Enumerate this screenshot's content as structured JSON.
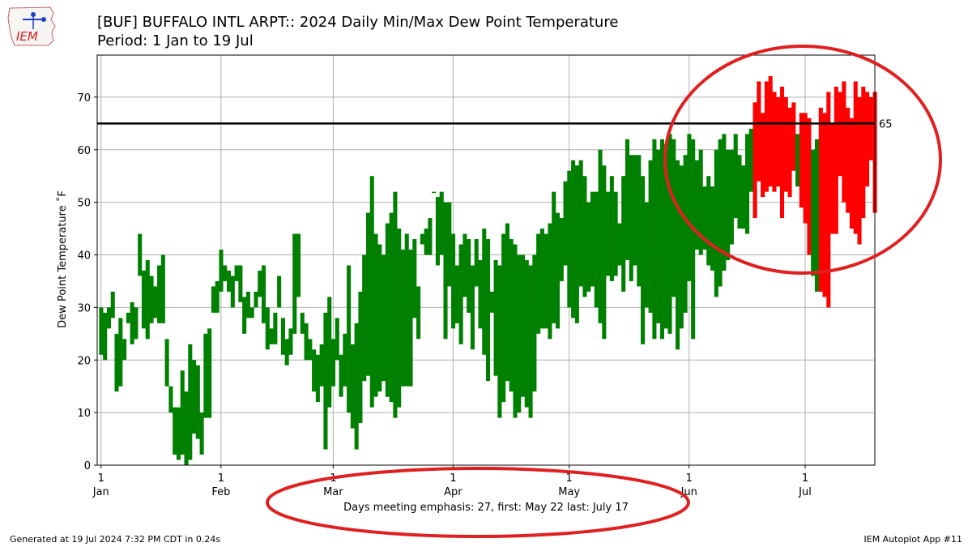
{
  "title_line1": "[BUF] BUFFALO INTL ARPT:: 2024 Daily Min/Max Dew Point Temperature",
  "title_line2": "Period: 1 Jan to 19 Jul",
  "logo_text": "IEM",
  "footer_left": "Generated at 19 Jul 2024 7:32 PM CDT in 0.24s",
  "footer_right": "IEM Autoplot App #11",
  "colors": {
    "normal": "#008000",
    "emphasis": "#ff0000",
    "threshold": "#000000",
    "annotation_ellipse": "#e02020",
    "grid": "#b0b0b0"
  },
  "chart_data": {
    "type": "bar",
    "title": "[BUF] BUFFALO INTL ARPT:: 2024 Daily Min/Max Dew Point Temperature",
    "subtitle": "Period: 1 Jan to 19 Jul",
    "xlabel": "",
    "ylabel": "Dew Point Temperature ˚F",
    "ylim": [
      0,
      78
    ],
    "yticks": [
      0,
      10,
      20,
      30,
      40,
      50,
      60,
      70
    ],
    "xlim_day": [
      0,
      201
    ],
    "month_ticks": [
      {
        "day": 1,
        "top": "1",
        "bottom": "Jan"
      },
      {
        "day": 32,
        "top": "1",
        "bottom": "Feb"
      },
      {
        "day": 61,
        "top": "1",
        "bottom": "Mar"
      },
      {
        "day": 92,
        "top": "1",
        "bottom": "Apr"
      },
      {
        "day": 122,
        "top": "1",
        "bottom": "May"
      },
      {
        "day": 153,
        "top": "1",
        "bottom": "Jun"
      },
      {
        "day": 183,
        "top": "1",
        "bottom": "Jul"
      }
    ],
    "threshold": 65,
    "threshold_label": "65",
    "emphasis_summary": "Days meeting emphasis: 27, first: May 22 last: July 17",
    "start_date": "2024-01-01",
    "daily_min": [
      21,
      20,
      26,
      28,
      14,
      15,
      20,
      27,
      23,
      24,
      36,
      26,
      24,
      27,
      28,
      27,
      27,
      15,
      10,
      2,
      1,
      2,
      0,
      1,
      6,
      5,
      2,
      9,
      9,
      29,
      29,
      33,
      35,
      33,
      30,
      35,
      31,
      25,
      28,
      28,
      30,
      32,
      27,
      22,
      23,
      23,
      30,
      21,
      19,
      21,
      25,
      32,
      25,
      20,
      20,
      14,
      12,
      15,
      3,
      11,
      15,
      20,
      13,
      15,
      10,
      7,
      3,
      8,
      16,
      17,
      11,
      13,
      14,
      16,
      13,
      12,
      9,
      11,
      15,
      15,
      15,
      28,
      24,
      42,
      40,
      40,
      52,
      38,
      40,
      24,
      34,
      26,
      27,
      23,
      32,
      29,
      22,
      34,
      26,
      21,
      16,
      29,
      17,
      9,
      12,
      16,
      14,
      9,
      10,
      13,
      11,
      9,
      14,
      25,
      26,
      26,
      24,
      27,
      26,
      35,
      38,
      30,
      28,
      27,
      34,
      32,
      33,
      34,
      30,
      27,
      24,
      36,
      35,
      36,
      38,
      33,
      39,
      35,
      38,
      34,
      23,
      30,
      29,
      24,
      27,
      24,
      26,
      25,
      32,
      22,
      26,
      29,
      35,
      24,
      41,
      40,
      41,
      38,
      37,
      32,
      34,
      37,
      39,
      42,
      47,
      45,
      45,
      44,
      52,
      47,
      54,
      51,
      52,
      53,
      52,
      53,
      47,
      52,
      51,
      56,
      53,
      49,
      46,
      40,
      36,
      33,
      33,
      32,
      30,
      44,
      44,
      55,
      50,
      48,
      45,
      44,
      42,
      47,
      53,
      58,
      48
    ],
    "daily_max": [
      30,
      29,
      30,
      33,
      25,
      28,
      24,
      29,
      31,
      30,
      44,
      37,
      39,
      36,
      34,
      38,
      40,
      24,
      15,
      11,
      11,
      18,
      14,
      23,
      20,
      19,
      10,
      25,
      26,
      34,
      35,
      41,
      38,
      37,
      36,
      38,
      38,
      32,
      33,
      30,
      33,
      37,
      38,
      30,
      26,
      29,
      36,
      28,
      24,
      26,
      44,
      44,
      29,
      27,
      24,
      22,
      21,
      23,
      29,
      32,
      24,
      28,
      21,
      25,
      38,
      23,
      27,
      33,
      40,
      48,
      55,
      44,
      42,
      40,
      46,
      48,
      52,
      45,
      41,
      44,
      41,
      43,
      34,
      44,
      45,
      47,
      52,
      51,
      52,
      50,
      50,
      44,
      38,
      42,
      44,
      43,
      38,
      43,
      39,
      45,
      43,
      33,
      39,
      38,
      44,
      46,
      43,
      42,
      40,
      40,
      39,
      38,
      40,
      44,
      45,
      44,
      46,
      52,
      48,
      47,
      54,
      56,
      58,
      57,
      58,
      55,
      50,
      52,
      52,
      60,
      57,
      52,
      55,
      52,
      46,
      55,
      62,
      59,
      59,
      59,
      55,
      50,
      58,
      62,
      60,
      62,
      61,
      63,
      62,
      58,
      57,
      59,
      63,
      62,
      58,
      60,
      53,
      55,
      53,
      60,
      62,
      63,
      60,
      60,
      63,
      59,
      57,
      63,
      64,
      69,
      73,
      67,
      73,
      74,
      71,
      70,
      72,
      70,
      68,
      69,
      63,
      67,
      67,
      66,
      60,
      62,
      68,
      67,
      71,
      65,
      72,
      71,
      73,
      68,
      66,
      73,
      70,
      72,
      71,
      70,
      71
    ]
  }
}
